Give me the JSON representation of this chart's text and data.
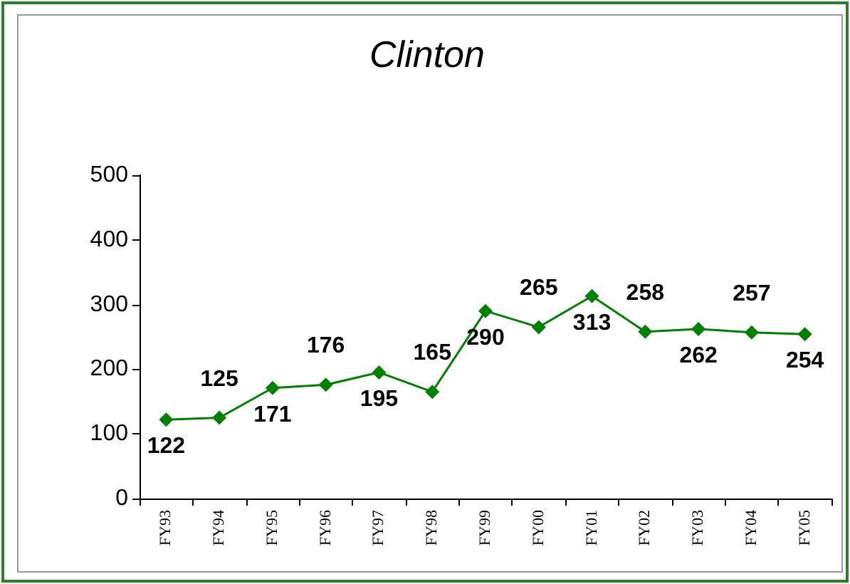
{
  "chart_data": {
    "type": "line",
    "title": "Clinton",
    "categories": [
      "FY93",
      "FY94",
      "FY95",
      "FY96",
      "FY97",
      "FY98",
      "FY99",
      "FY00",
      "FY01",
      "FY02",
      "FY03",
      "FY04",
      "FY05"
    ],
    "series": [
      {
        "color": "#008000",
        "values": [
          122,
          125,
          171,
          176,
          195,
          165,
          290,
          265,
          313,
          258,
          262,
          257,
          254
        ]
      }
    ],
    "ylim": [
      0,
      500
    ],
    "yticks": [
      0,
      100,
      200,
      300,
      400,
      500
    ],
    "grid": false,
    "marker": "diamond",
    "line_style": "solid",
    "data_labels": true
  }
}
